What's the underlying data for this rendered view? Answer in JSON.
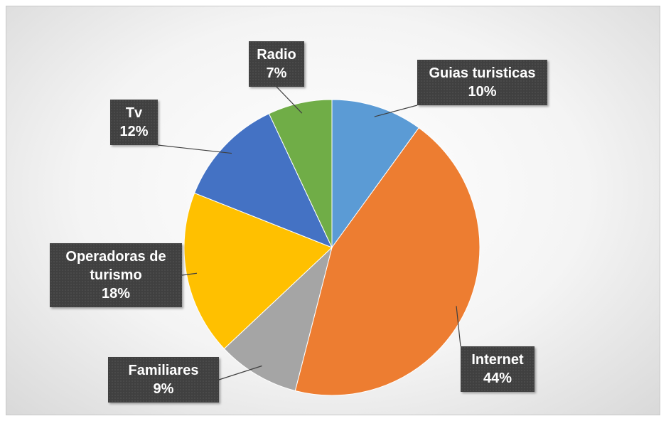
{
  "chart_data": {
    "type": "pie",
    "categories": [
      "Guias turisticas",
      "Internet",
      "Familiares",
      "Operadoras de turismo",
      "Tv",
      "Radio"
    ],
    "values": [
      10,
      44,
      9,
      18,
      12,
      7
    ],
    "value_labels": [
      "10%",
      "44%",
      "9%",
      "18%",
      "12%",
      "7%"
    ],
    "colors": [
      "#5b9bd5",
      "#ed7d31",
      "#a5a5a5",
      "#ffc000",
      "#4472c4",
      "#70ad47"
    ]
  }
}
